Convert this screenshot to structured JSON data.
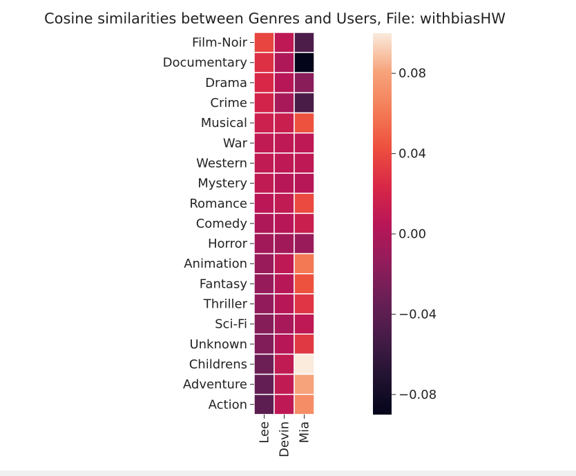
{
  "chart_data": {
    "type": "heatmap",
    "title": "Cosine similarities between Genres and Users, File: withbiasHW",
    "xlabel": "",
    "ylabel": "",
    "columns": [
      "Lee",
      "Devin",
      "Mia"
    ],
    "rows": [
      "Film-Noir",
      "Documentary",
      "Drama",
      "Crime",
      "Musical",
      "War",
      "Western",
      "Mystery",
      "Romance",
      "Comedy",
      "Horror",
      "Animation",
      "Fantasy",
      "Thriller",
      "Sci-Fi",
      "Unknown",
      "Childrens",
      "Adventure",
      "Action"
    ],
    "values": [
      [
        0.038,
        0.008,
        -0.048
      ],
      [
        0.028,
        0.0,
        -0.09
      ],
      [
        0.024,
        0.004,
        -0.018
      ],
      [
        0.02,
        -0.004,
        -0.05
      ],
      [
        0.016,
        0.014,
        0.044
      ],
      [
        0.01,
        0.008,
        0.008
      ],
      [
        0.01,
        0.008,
        0.008
      ],
      [
        0.01,
        0.004,
        0.004
      ],
      [
        0.006,
        0.01,
        0.04
      ],
      [
        0.0,
        0.004,
        0.014
      ],
      [
        -0.006,
        -0.006,
        -0.01
      ],
      [
        -0.01,
        0.008,
        0.06
      ],
      [
        -0.012,
        0.004,
        0.044
      ],
      [
        -0.014,
        0.004,
        0.03
      ],
      [
        -0.02,
        -0.004,
        0.008
      ],
      [
        -0.022,
        0.004,
        0.032
      ],
      [
        -0.032,
        0.01,
        0.1
      ],
      [
        -0.036,
        0.01,
        0.08
      ],
      [
        -0.04,
        0.008,
        0.07
      ]
    ],
    "colorbar": {
      "min": -0.09,
      "max": 0.1,
      "ticks": [
        -0.08,
        -0.04,
        0.0,
        0.04,
        0.08
      ],
      "tick_labels": [
        "−0.08",
        "−0.04",
        "0.00",
        "0.04",
        "0.08"
      ],
      "colormap": "rocket"
    },
    "grid": false,
    "cell_border_color": "#ffffff"
  }
}
